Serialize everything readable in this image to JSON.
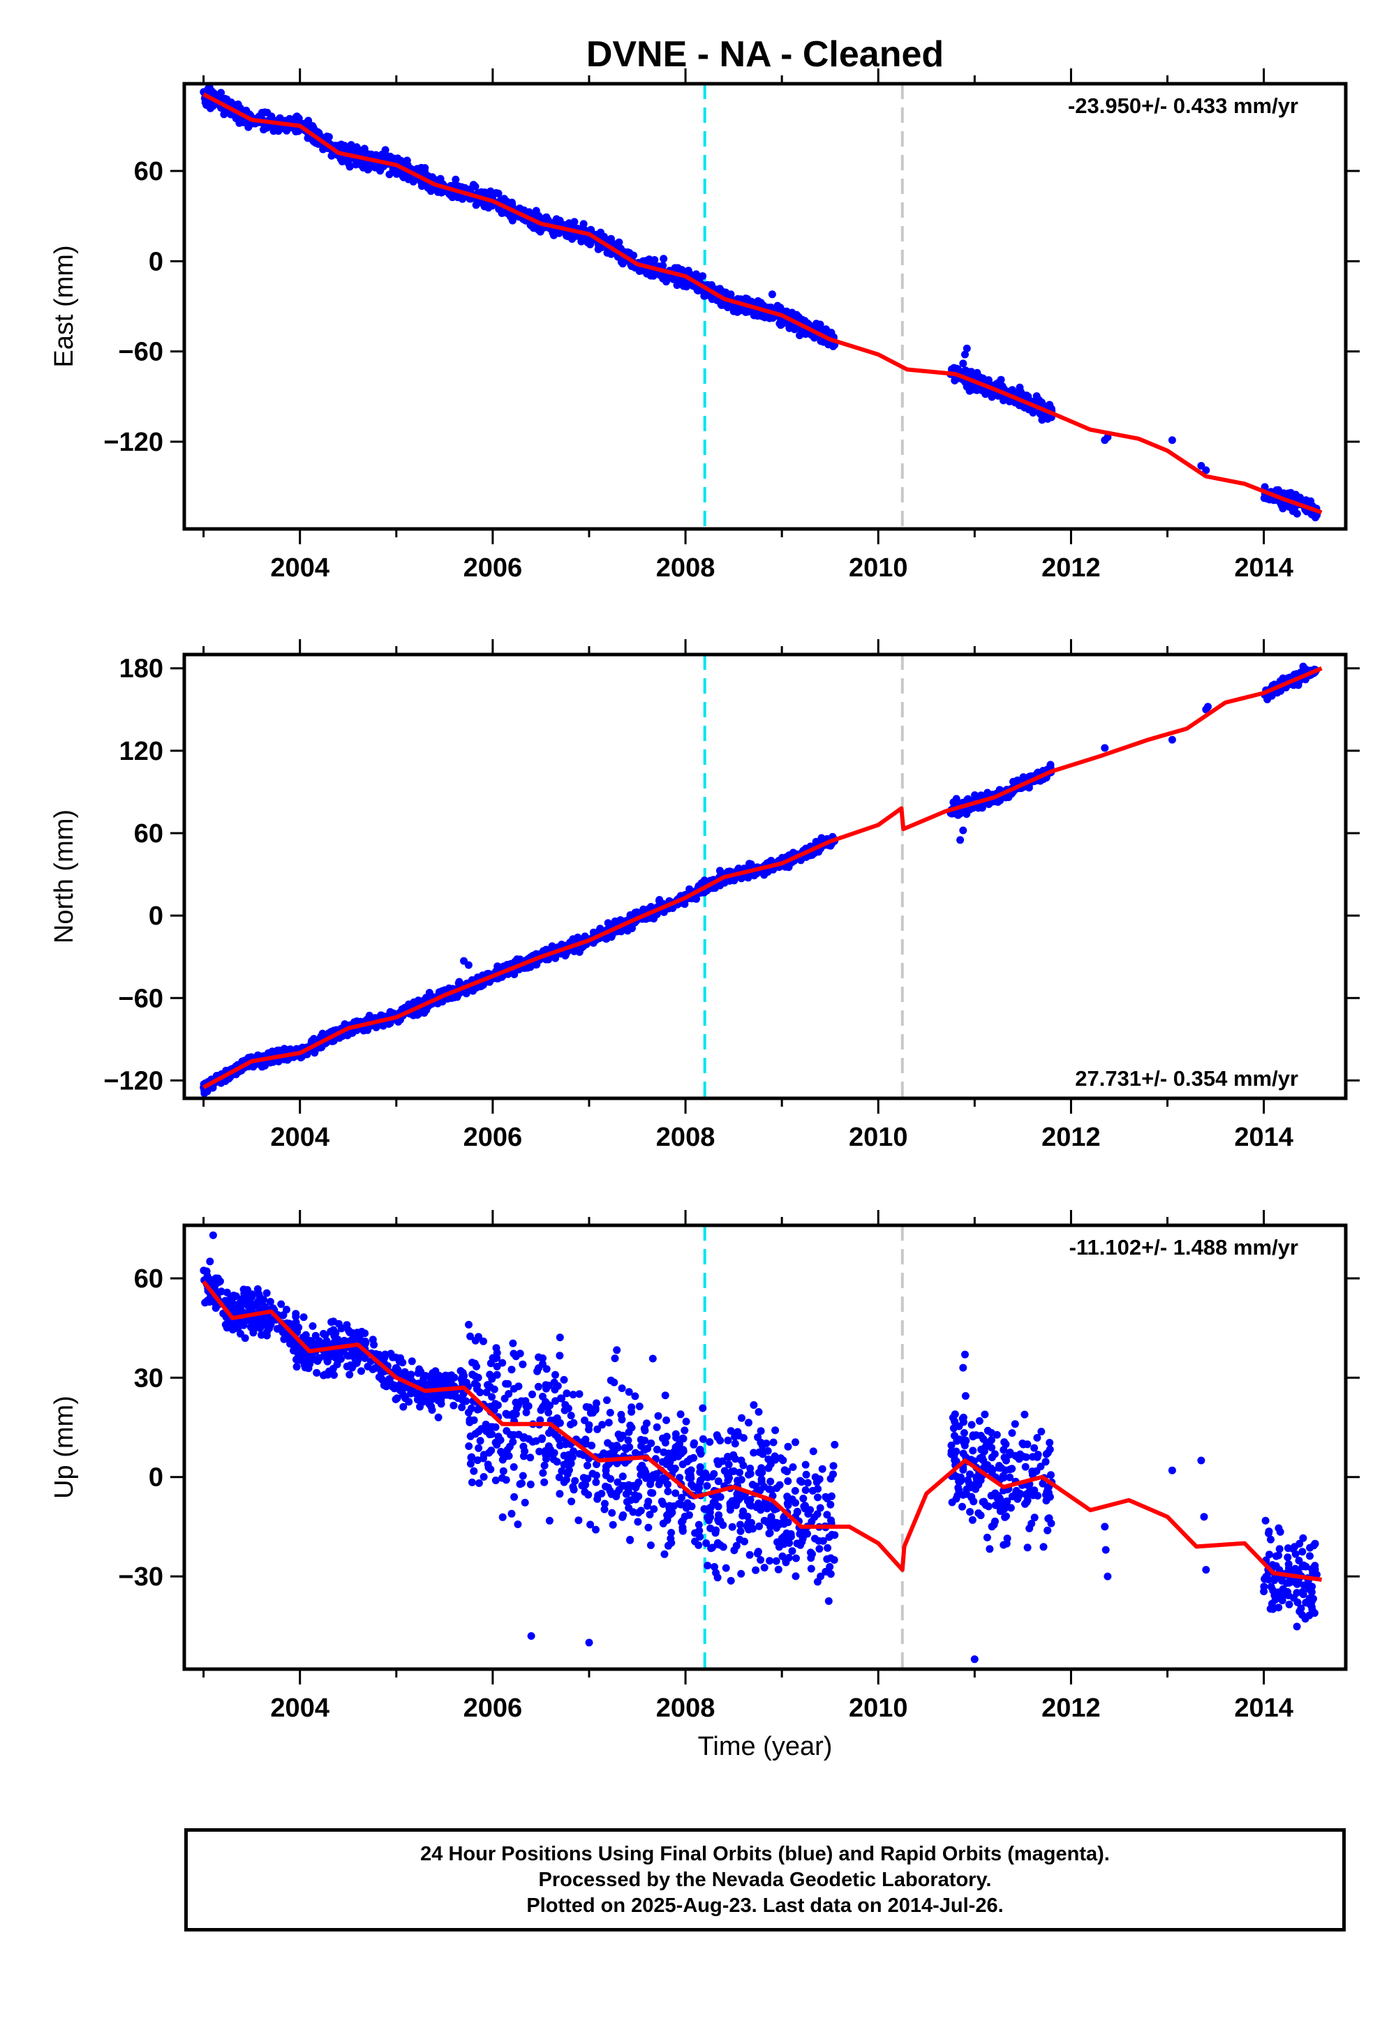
{
  "chart_data": {
    "title": "DVNE  - NA - Cleaned",
    "xlabel": "Time (year)",
    "x_tick_labels": [
      "2004",
      "2006",
      "2008",
      "2010",
      "2012",
      "2014"
    ],
    "xlim": [
      2002.8,
      2014.85
    ],
    "vertical_lines": [
      {
        "x": 2008.2,
        "color": "#00e5ee",
        "style": "dashed"
      },
      {
        "x": 2010.25,
        "color": "#c8c8c8",
        "style": "dashed"
      }
    ],
    "colors": {
      "points": "#0000ff",
      "fit": "#ff0000",
      "axis": "#000000"
    },
    "panels": [
      {
        "name": "east",
        "type": "scatter",
        "ylabel": "East (mm)",
        "ylim": [
          -178,
          118
        ],
        "yticks": [
          60,
          0,
          -60,
          -120
        ],
        "ytick_labels": [
          "60",
          "0",
          "−60",
          "−120"
        ],
        "rate_text": "-23.950+/- 0.433 mm/yr",
        "rate_position": "top-right",
        "fit": [
          [
            2003.0,
            111
          ],
          [
            2003.5,
            94
          ],
          [
            2004.0,
            90
          ],
          [
            2004.4,
            72
          ],
          [
            2005.0,
            64
          ],
          [
            2005.4,
            51
          ],
          [
            2006.0,
            40
          ],
          [
            2006.5,
            25
          ],
          [
            2007.0,
            18
          ],
          [
            2007.5,
            -2
          ],
          [
            2008.0,
            -10
          ],
          [
            2008.4,
            -25
          ],
          [
            2009.0,
            -36
          ],
          [
            2009.5,
            -52
          ],
          [
            2010.0,
            -62
          ],
          [
            2010.3,
            -72
          ],
          [
            2010.8,
            -75
          ],
          [
            2011.2,
            -85
          ],
          [
            2011.8,
            -101
          ],
          [
            2012.2,
            -112
          ],
          [
            2012.7,
            -118
          ],
          [
            2013.0,
            -126
          ],
          [
            2013.4,
            -143
          ],
          [
            2013.8,
            -148
          ],
          [
            2014.2,
            -158
          ],
          [
            2014.6,
            -167
          ]
        ],
        "segments": [
          [
            2003.0,
            2009.55
          ],
          [
            2010.75,
            2011.8
          ],
          [
            2014.0,
            2014.55
          ]
        ],
        "scatter": 5,
        "isolated": [
          [
            2012.35,
            -119
          ],
          [
            2012.38,
            -117
          ],
          [
            2013.05,
            -119
          ],
          [
            2013.35,
            -136
          ],
          [
            2013.4,
            -139
          ]
        ],
        "spikes": [
          [
            2010.9,
            -62
          ],
          [
            2010.88,
            -68
          ],
          [
            2010.92,
            -58
          ],
          [
            2008.9,
            -22
          ]
        ]
      },
      {
        "name": "north",
        "type": "scatter",
        "ylabel": "North (mm)",
        "ylim": [
          -133,
          190
        ],
        "yticks": [
          180,
          120,
          60,
          0,
          -60,
          -120
        ],
        "ytick_labels": [
          "180",
          "120",
          "60",
          "0",
          "−60",
          "−120"
        ],
        "rate_text": "27.731+/- 0.354 mm/yr",
        "rate_position": "bottom-right",
        "fit": [
          [
            2003.0,
            -125
          ],
          [
            2003.5,
            -106
          ],
          [
            2004.0,
            -100
          ],
          [
            2004.5,
            -82
          ],
          [
            2005.0,
            -74
          ],
          [
            2005.5,
            -58
          ],
          [
            2006.0,
            -44
          ],
          [
            2006.5,
            -30
          ],
          [
            2007.0,
            -18
          ],
          [
            2007.5,
            -2
          ],
          [
            2008.0,
            13
          ],
          [
            2008.4,
            28
          ],
          [
            2009.0,
            38
          ],
          [
            2009.5,
            54
          ],
          [
            2010.0,
            66
          ],
          [
            2010.24,
            78
          ],
          [
            2010.26,
            63
          ],
          [
            2010.7,
            76
          ],
          [
            2011.2,
            86
          ],
          [
            2011.8,
            105
          ],
          [
            2012.3,
            116
          ],
          [
            2012.8,
            128
          ],
          [
            2013.2,
            136
          ],
          [
            2013.6,
            155
          ],
          [
            2014.0,
            162
          ],
          [
            2014.6,
            180
          ]
        ],
        "segments": [
          [
            2003.0,
            2009.55
          ],
          [
            2010.75,
            2011.8
          ],
          [
            2014.0,
            2014.55
          ]
        ],
        "scatter": 4,
        "isolated": [
          [
            2012.35,
            122
          ],
          [
            2013.05,
            128
          ],
          [
            2013.4,
            150
          ],
          [
            2013.42,
            152
          ]
        ],
        "spikes": [
          [
            2010.85,
            55
          ],
          [
            2010.88,
            62
          ],
          [
            2005.7,
            -33
          ],
          [
            2005.75,
            -36
          ]
        ]
      },
      {
        "name": "up",
        "type": "scatter",
        "ylabel": "Up (mm)",
        "ylim": [
          -58,
          76
        ],
        "yticks": [
          60,
          30,
          0,
          -30
        ],
        "ytick_labels": [
          "60",
          "30",
          "0",
          "−30"
        ],
        "rate_text": "-11.102+/- 1.488 mm/yr",
        "rate_position": "top-right",
        "fit": [
          [
            2003.0,
            59
          ],
          [
            2003.3,
            48
          ],
          [
            2003.7,
            50
          ],
          [
            2004.1,
            38
          ],
          [
            2004.6,
            40
          ],
          [
            2005.0,
            30
          ],
          [
            2005.3,
            26
          ],
          [
            2005.7,
            27
          ],
          [
            2006.1,
            16
          ],
          [
            2006.6,
            16
          ],
          [
            2007.1,
            5
          ],
          [
            2007.6,
            6
          ],
          [
            2008.1,
            -6
          ],
          [
            2008.5,
            -3
          ],
          [
            2008.9,
            -7
          ],
          [
            2009.2,
            -15
          ],
          [
            2009.7,
            -15
          ],
          [
            2010.0,
            -20
          ],
          [
            2010.25,
            -28
          ],
          [
            2010.27,
            -21
          ],
          [
            2010.5,
            -5
          ],
          [
            2010.9,
            5
          ],
          [
            2011.3,
            -3
          ],
          [
            2011.7,
            0
          ],
          [
            2012.2,
            -10
          ],
          [
            2012.6,
            -7
          ],
          [
            2013.0,
            -12
          ],
          [
            2013.3,
            -21
          ],
          [
            2013.8,
            -20
          ],
          [
            2014.1,
            -29
          ],
          [
            2014.6,
            -31
          ]
        ],
        "segments": [
          [
            2003.0,
            2005.75
          ],
          [
            2005.75,
            2009.55
          ],
          [
            2010.75,
            2011.8
          ],
          [
            2014.0,
            2014.55
          ]
        ],
        "segment_scatter": [
          6,
          20,
          15,
          12
        ],
        "isolated": [
          [
            2012.35,
            -15
          ],
          [
            2012.36,
            -22
          ],
          [
            2012.38,
            -30
          ],
          [
            2013.05,
            2
          ],
          [
            2013.35,
            5
          ],
          [
            2013.38,
            -12
          ],
          [
            2013.4,
            -28
          ],
          [
            2005.85,
            30
          ]
        ],
        "spikes": [
          [
            2003.1,
            73
          ],
          [
            2010.9,
            37
          ],
          [
            2010.88,
            33
          ],
          [
            2011.0,
            -55
          ],
          [
            2007.0,
            -50
          ],
          [
            2006.4,
            -48
          ]
        ]
      }
    ]
  },
  "footer": {
    "line1": "24 Hour Positions Using Final Orbits (blue) and Rapid Orbits (magenta).",
    "line2": "Processed by the Nevada Geodetic Laboratory.",
    "line3": "Plotted on 2025-Aug-23. Last data on 2014-Jul-26."
  }
}
